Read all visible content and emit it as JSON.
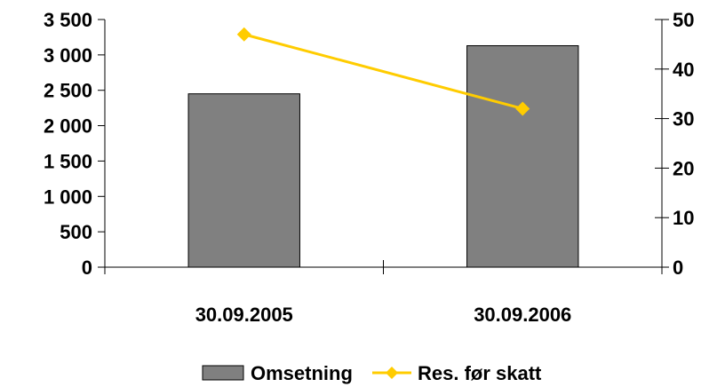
{
  "chart_data": {
    "type": "bar",
    "categories": [
      "30.09.2005",
      "30.09.2006"
    ],
    "series": [
      {
        "name": "Omsetning",
        "type": "bar",
        "axis": "left",
        "color": "#808080",
        "values": [
          2450,
          3130
        ]
      },
      {
        "name": "Res. før skatt",
        "type": "line",
        "axis": "right",
        "color": "#FFCC00",
        "marker": "diamond",
        "values": [
          47,
          32
        ]
      }
    ],
    "y_left": {
      "ylim": [
        0,
        3500
      ],
      "ticks": [
        0,
        500,
        1000,
        1500,
        2000,
        2500,
        3000,
        3500
      ],
      "tick_labels": [
        "0",
        "500",
        "1 000",
        "1 500",
        "2 000",
        "2 500",
        "3 000",
        "3 500"
      ]
    },
    "y_right": {
      "ylim": [
        0,
        50
      ],
      "ticks": [
        0,
        10,
        20,
        30,
        40,
        50
      ],
      "tick_labels": [
        "0",
        "10",
        "20",
        "30",
        "40",
        "50"
      ]
    },
    "grid": false,
    "legend": "bottom",
    "xlabel": "",
    "ylabel": ""
  }
}
